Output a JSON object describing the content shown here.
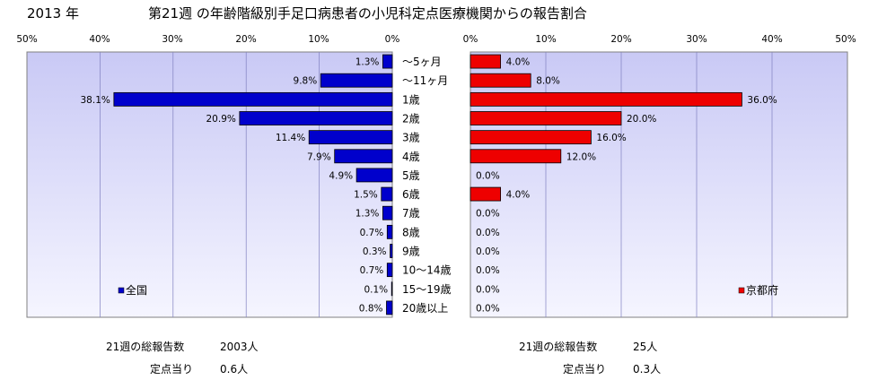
{
  "header": {
    "year": "2013 年",
    "title": "第21週 の年齢階級別手足口病患者の小児科定点医療機関からの報告割合"
  },
  "colors": {
    "national_bar": "#0000cc",
    "kyoto_bar": "#ee0000",
    "plot_bg_top": "#c9c9f5",
    "plot_bg_bottom": "#f5f5ff",
    "grid": "#8080c0"
  },
  "chart_data": [
    {
      "type": "bar",
      "orientation": "horizontal",
      "direction": "right-to-left",
      "series": [
        {
          "name": "全国",
          "values": [
            1.3,
            9.8,
            38.1,
            20.9,
            11.4,
            7.9,
            4.9,
            1.5,
            1.3,
            0.7,
            0.3,
            0.7,
            0.1,
            0.8
          ]
        }
      ],
      "value_labels": [
        "1.3%",
        "9.8%",
        "38.1%",
        "20.9%",
        "11.4%",
        "7.9%",
        "4.9%",
        "1.5%",
        "1.3%",
        "0.7%",
        "0.3%",
        "0.7%",
        "0.1%",
        "0.8%"
      ],
      "xlim": [
        0,
        50
      ],
      "tick_labels": [
        "50%",
        "40%",
        "30%",
        "20%",
        "10%",
        "0%"
      ],
      "legend": "bottom-left",
      "grid": true
    },
    {
      "type": "bar",
      "orientation": "horizontal",
      "direction": "left-to-right",
      "series": [
        {
          "name": "京都府",
          "values": [
            4.0,
            8.0,
            36.0,
            20.0,
            16.0,
            12.0,
            0.0,
            4.0,
            0.0,
            0.0,
            0.0,
            0.0,
            0.0,
            0.0
          ]
        }
      ],
      "value_labels": [
        "4.0%",
        "8.0%",
        "36.0%",
        "20.0%",
        "16.0%",
        "12.0%",
        "0.0%",
        "4.0%",
        "0.0%",
        "0.0%",
        "0.0%",
        "0.0%",
        "0.0%",
        "0.0%"
      ],
      "xlim": [
        0,
        50
      ],
      "tick_labels": [
        "0%",
        "10%",
        "20%",
        "30%",
        "40%",
        "50%"
      ],
      "legend": "bottom-right",
      "grid": true
    }
  ],
  "categories": [
    "～5ヶ月",
    "～11ヶ月",
    "1歳",
    "2歳",
    "3歳",
    "4歳",
    "5歳",
    "6歳",
    "7歳",
    "8歳",
    "9歳",
    "10～14歳",
    "15～19歳",
    "20歳以上"
  ],
  "footer": {
    "national": {
      "total_label": "21週の総報告数",
      "total_value": "2003人",
      "per_label": "定点当り",
      "per_value": "0.6人"
    },
    "kyoto": {
      "total_label": "21週の総報告数",
      "total_value": "25人",
      "per_label": "定点当り",
      "per_value": "0.3人"
    }
  }
}
